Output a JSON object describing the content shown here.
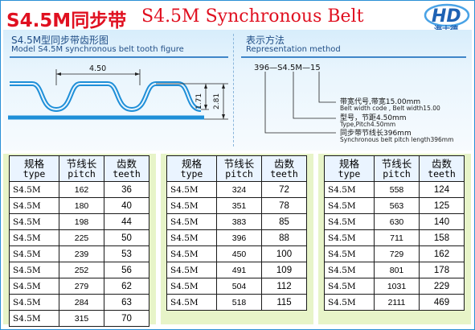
{
  "title": {
    "cn": "S4.5M同步带",
    "en": "S4.5M Synchronous Belt"
  },
  "logo": {
    "mark": "HD",
    "name": "海士德"
  },
  "tooth_figure": {
    "heading_cn": "S4.5M型同步带齿形图",
    "heading_en": "Model S4.5M synchronous belt tooth figure",
    "pitch": "4.50",
    "tooth_height": "1.71",
    "total_height": "2.81"
  },
  "representation": {
    "heading_cn": "表示方法",
    "heading_en": "Representation method",
    "code": "396—S4.5M—15",
    "width_cn": "带宽代号,带宽15.00mm",
    "width_en": "Belt width code , Belt width15.00",
    "type_cn": "型号，节距4.50mm",
    "type_en": "Type,Pitch4.50mm",
    "length_cn": "同步带节线长396mm",
    "length_en": "Synchronous belt pitch length396mm"
  },
  "columns": [
    {
      "cn": "规格",
      "en": "type"
    },
    {
      "cn": "节线长",
      "en": "pitch"
    },
    {
      "cn": "齿数",
      "en": "teeth"
    }
  ],
  "tables": [
    [
      [
        "S4.5M",
        "162",
        "36"
      ],
      [
        "S4.5M",
        "180",
        "40"
      ],
      [
        "S4.5M",
        "198",
        "44"
      ],
      [
        "S4.5M",
        "225",
        "50"
      ],
      [
        "S4.5M",
        "239",
        "53"
      ],
      [
        "S4.5M",
        "252",
        "56"
      ],
      [
        "S4.5M",
        "279",
        "62"
      ],
      [
        "S4.5M",
        "284",
        "63"
      ],
      [
        "S4.5M",
        "315",
        "70"
      ]
    ],
    [
      [
        "S4.5M",
        "324",
        "72"
      ],
      [
        "S4.5M",
        "351",
        "78"
      ],
      [
        "S4.5M",
        "383",
        "85"
      ],
      [
        "S4.5M",
        "396",
        "88"
      ],
      [
        "S4.5M",
        "450",
        "100"
      ],
      [
        "S4.5M",
        "491",
        "109"
      ],
      [
        "S4.5M",
        "504",
        "112"
      ],
      [
        "S4.5M",
        "518",
        "115"
      ]
    ],
    [
      [
        "S4.5M",
        "558",
        "124"
      ],
      [
        "S4.5M",
        "563",
        "125"
      ],
      [
        "S4.5M",
        "630",
        "140"
      ],
      [
        "S4.5M",
        "711",
        "158"
      ],
      [
        "S4.5M",
        "729",
        "162"
      ],
      [
        "S4.5M",
        "801",
        "178"
      ],
      [
        "S4.5M",
        "1031",
        "229"
      ],
      [
        "S4.5M",
        "2111",
        "469"
      ]
    ]
  ],
  "colors": {
    "title": "#e01020",
    "belt": "#1f8fd8",
    "table_bg": "#e7f4c8",
    "header_bg": "#eaf4ff"
  }
}
